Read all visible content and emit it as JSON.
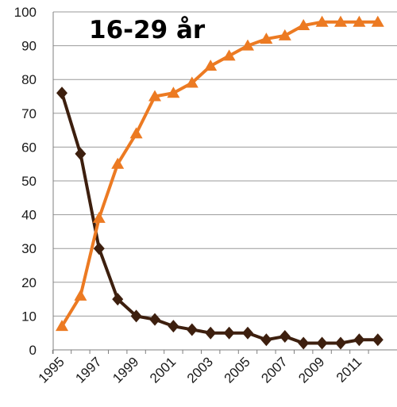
{
  "chart_data": {
    "type": "line",
    "title": "16-29 år",
    "xlabel": "",
    "ylabel": "",
    "ylim": [
      0,
      100
    ],
    "xlim": [
      1995,
      2012
    ],
    "y_ticks": [
      "0",
      "10",
      "20",
      "30",
      "40",
      "50",
      "60",
      "70",
      "80",
      "90",
      "100"
    ],
    "x_tick_labels": [
      "1995",
      "1997",
      "1999",
      "2001",
      "2003",
      "2005",
      "2007",
      "2009",
      "2011"
    ],
    "grid": true,
    "legend": "none",
    "x": [
      1995,
      1996,
      1997,
      1998,
      1999,
      2000,
      2001,
      2002,
      2003,
      2004,
      2005,
      2006,
      2007,
      2008,
      2009,
      2010,
      2011,
      2012
    ],
    "series": [
      {
        "color": "#3d1f0e",
        "marker": "diamond",
        "values": [
          76,
          58,
          30,
          15,
          10,
          9,
          7,
          6,
          5,
          5,
          5,
          3,
          4,
          2,
          2,
          2,
          3,
          3
        ]
      },
      {
        "color": "#ec7a22",
        "marker": "triangle",
        "values": [
          7,
          16,
          39,
          55,
          64,
          75,
          76,
          79,
          84,
          87,
          90,
          92,
          93,
          96,
          97,
          97,
          97,
          97
        ]
      }
    ]
  }
}
